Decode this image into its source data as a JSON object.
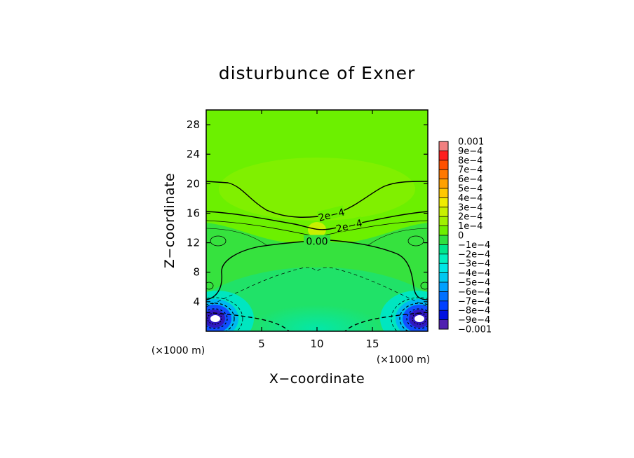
{
  "chart_data": {
    "type": "heatmap",
    "title": "disturbunce of Exner",
    "xlabel": "X−coordinate",
    "ylabel": "Z−coordinate",
    "x_unit_left": "(×1000 m)",
    "x_unit_right": "(×1000 m)",
    "xlim": [
      0,
      20
    ],
    "ylim": [
      0,
      30
    ],
    "x_ticks": [
      {
        "value": 5,
        "label": "5"
      },
      {
        "value": 10,
        "label": "10"
      },
      {
        "value": 15,
        "label": "15"
      }
    ],
    "y_ticks": [
      {
        "value": 4,
        "label": "4"
      },
      {
        "value": 8,
        "label": "8"
      },
      {
        "value": 12,
        "label": "12"
      },
      {
        "value": 16,
        "label": "16"
      },
      {
        "value": 20,
        "label": "20"
      },
      {
        "value": 24,
        "label": "24"
      },
      {
        "value": 28,
        "label": "28"
      }
    ],
    "contour_labels": [
      {
        "text": "2e−4",
        "x": 11.3,
        "z": 15.8
      },
      {
        "text": "2e−4",
        "x": 12.9,
        "z": 14.3
      },
      {
        "text": "0.00",
        "x": 10.0,
        "z": 12.2
      }
    ],
    "colorbar": {
      "labels": [
        "0.001",
        "9e−4",
        "8e−4",
        "7e−4",
        "6e−4",
        "5e−4",
        "4e−4",
        "3e−4",
        "2e−4",
        "1e−4",
        "0",
        "−1e−4",
        "−2e−4",
        "−3e−4",
        "−4e−4",
        "−5e−4",
        "−6e−4",
        "−7e−4",
        "−8e−4",
        "−9e−4",
        "−0.001"
      ],
      "colors": [
        "#f08080",
        "#ff2020",
        "#ff5000",
        "#ff7800",
        "#ffa000",
        "#ffc800",
        "#f0ec00",
        "#c8f000",
        "#a0f000",
        "#6eee00",
        "#30e040",
        "#00e68c",
        "#00f0c0",
        "#00e6e6",
        "#00c8f0",
        "#00a0ff",
        "#0070ff",
        "#0040ff",
        "#0010e0",
        "#5020b0"
      ]
    }
  }
}
